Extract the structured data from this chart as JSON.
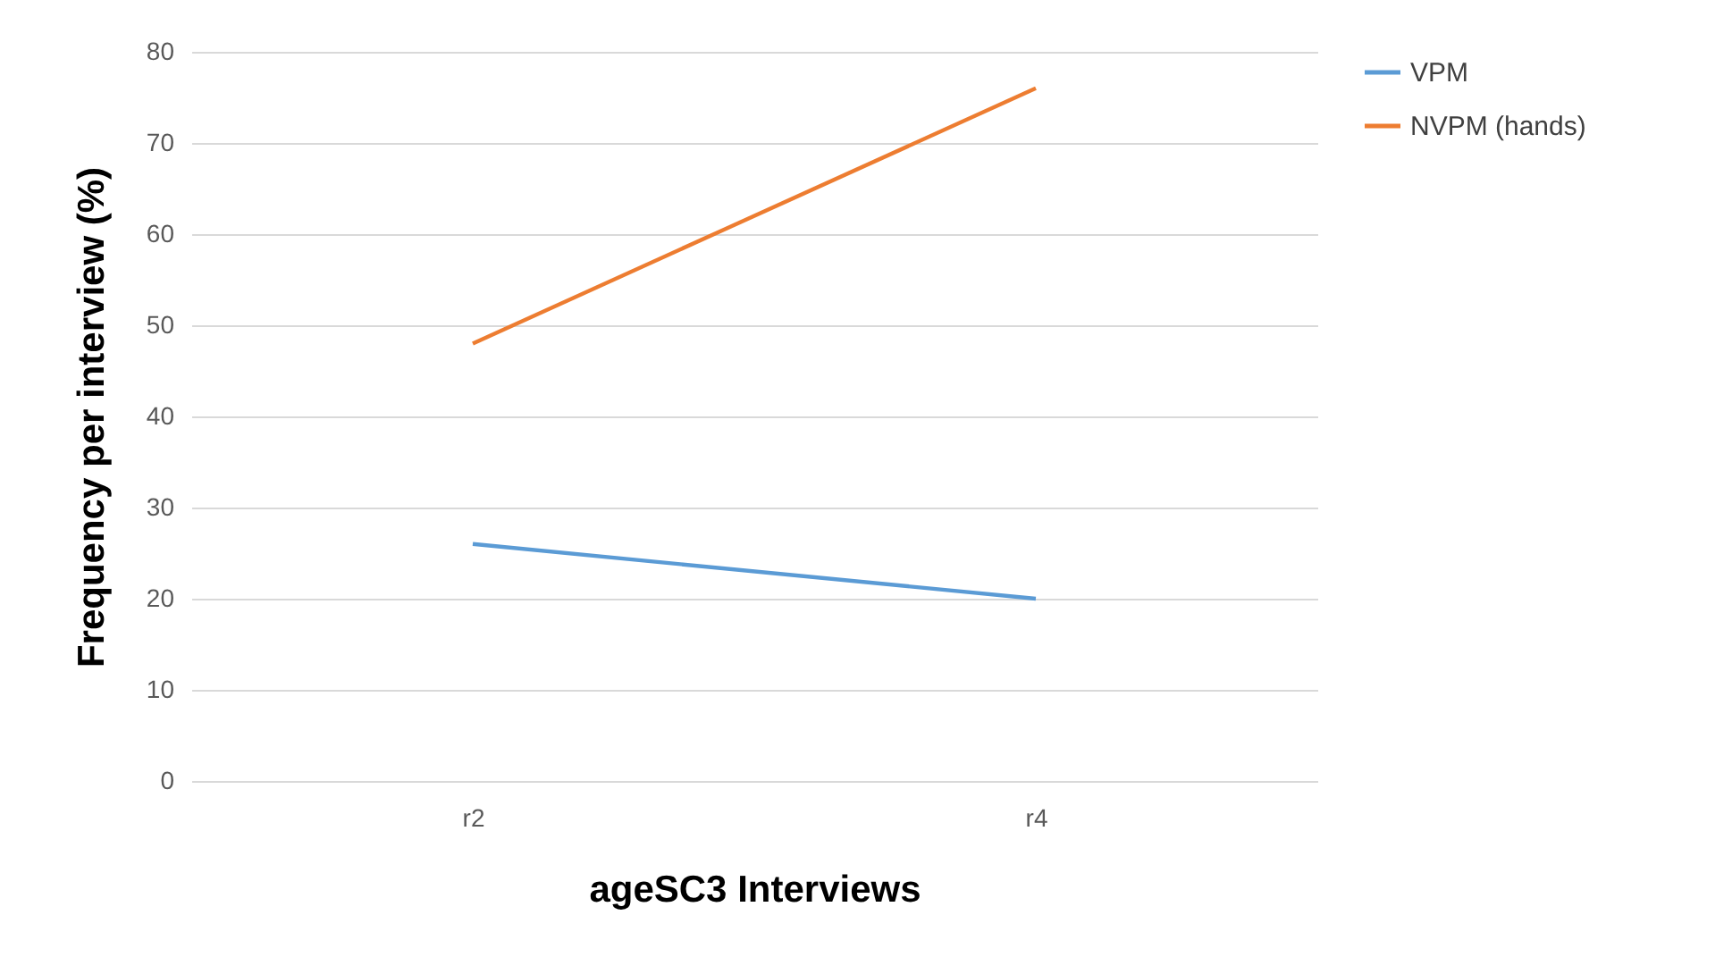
{
  "chart_data": {
    "type": "line",
    "xlabel": "ageSC3 Interviews",
    "ylabel": "Frequency per interview (%)",
    "categories": [
      "r2",
      "r4"
    ],
    "series": [
      {
        "name": "VPM",
        "color": "#5b9bd5",
        "values": [
          26,
          20
        ]
      },
      {
        "name": "NVPM (hands)",
        "color": "#ed7d31",
        "values": [
          48,
          76
        ]
      }
    ],
    "ylim": [
      0,
      80
    ],
    "yticks": [
      0,
      10,
      20,
      30,
      40,
      50,
      60,
      70,
      80
    ],
    "grid": "y",
    "legend": "right",
    "marker": "none"
  }
}
